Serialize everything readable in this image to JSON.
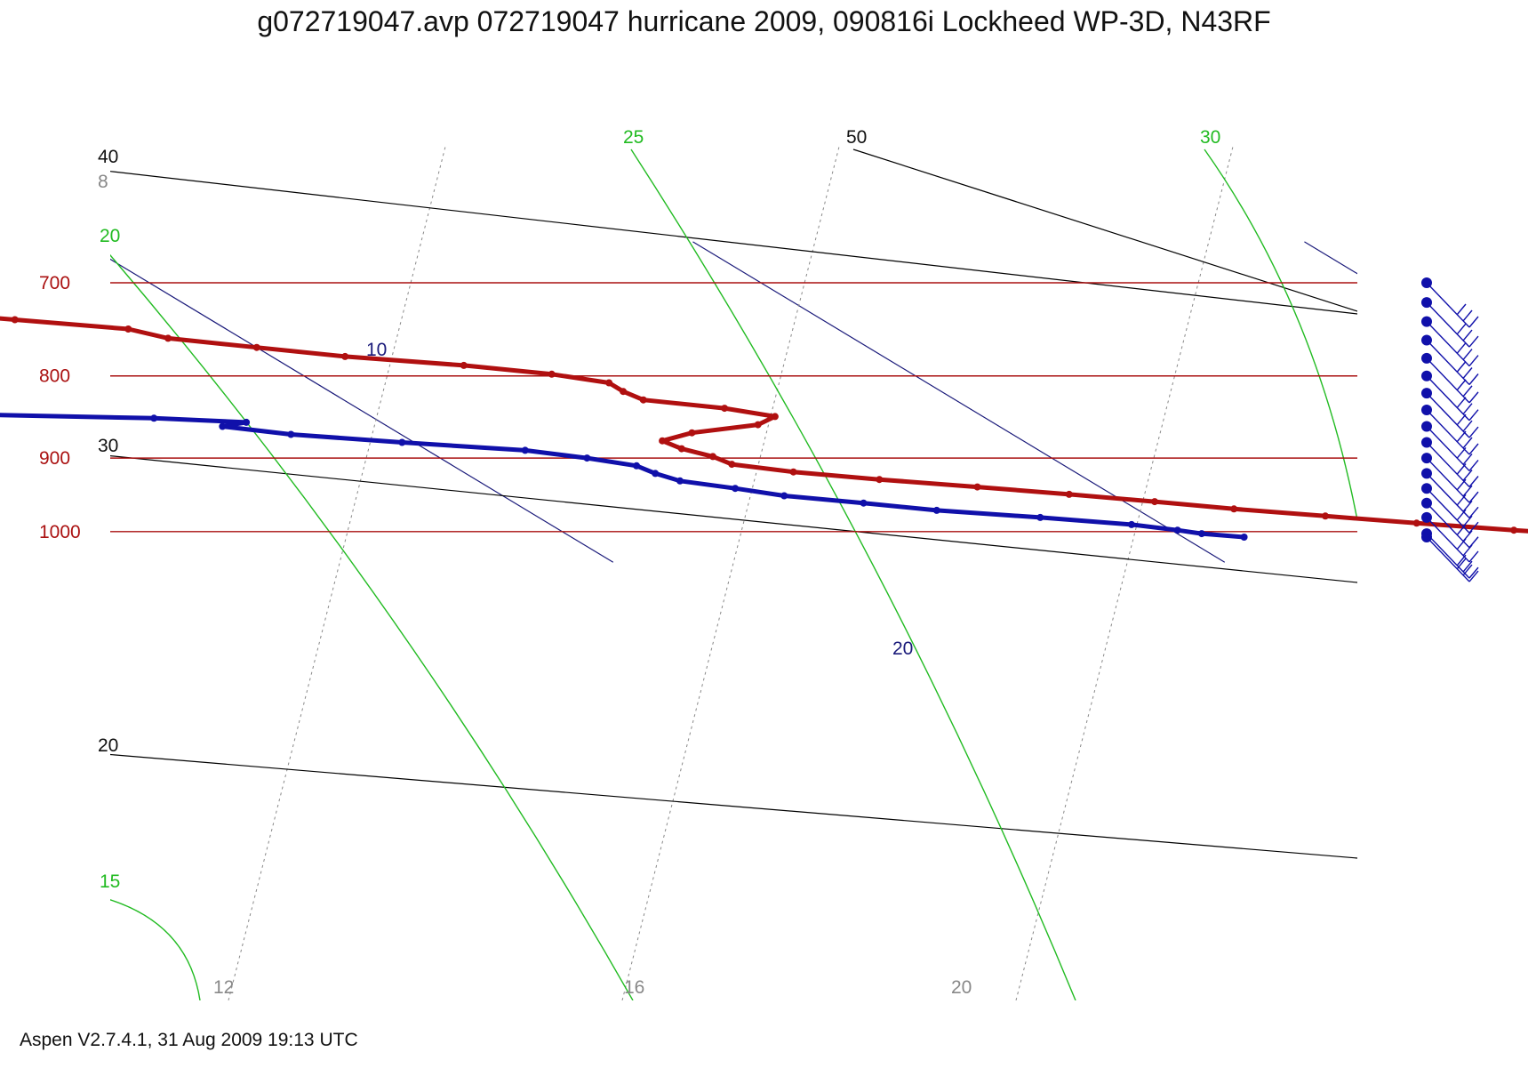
{
  "title": "g072719047.avp 072719047 hurricane 2009, 090816i Lockheed WP-3D, N43RF",
  "footer": "Aspen V2.7.4.1, 31 Aug 2009  19:13 UTC",
  "colors": {
    "isobar": "#aa1010",
    "dry_adiabat": "#000000",
    "moist_adiabat": "#22bb22",
    "isotherm": "#1a1a7a",
    "mixing_ratio": "#888888",
    "temperature": "#b01010",
    "dewpoint": "#1010aa",
    "wind": "#1010aa"
  },
  "chart_data": {
    "type": "line",
    "title": "g072719047.avp 072719047 hurricane 2009, 090816i Lockheed WP-3D, N43RF",
    "xlabel": "",
    "ylabel": "",
    "y_scale": "log",
    "ylim": [
      1045,
      660
    ],
    "pressure_levels": [
      700,
      800,
      900,
      1000
    ],
    "grid_labels": {
      "dry_adiabats": [
        "40",
        "30",
        "20",
        "50"
      ],
      "moist_adiabats": [
        "20",
        "25",
        "30",
        "15"
      ],
      "isotherms": [
        "10",
        "20"
      ],
      "mixing_ratio": [
        "8",
        "12",
        "16",
        "20"
      ]
    },
    "series": [
      {
        "name": "",
        "kind": "temperature",
        "pressure": [
          1008,
          998,
          988,
          978,
          968,
          958,
          948,
          938,
          928,
          918,
          908,
          898,
          888,
          878,
          868,
          858,
          848,
          838,
          828,
          818,
          808,
          798,
          788,
          778,
          768,
          758,
          748,
          738,
          728,
          718,
          713,
          703
        ],
        "value": [
          27.2,
          25.6,
          24.2,
          22.9,
          21.6,
          20.5,
          19.3,
          18.0,
          16.6,
          15.4,
          14.6,
          14.5,
          14.2,
          14.1,
          14.8,
          16.1,
          16.6,
          16.0,
          14.9,
          14.8,
          14.8,
          14.1,
          12.9,
          11.2,
          10.0,
          8.8,
          8.4,
          6.8,
          5.1,
          3.5,
          3.8,
          1.8
        ]
      },
      {
        "name": "",
        "kind": "dewpoint",
        "pressure": [
          1008,
          1003,
          998,
          990,
          980,
          970,
          960,
          950,
          940,
          930,
          920,
          910,
          900,
          890,
          880,
          870,
          860,
          855,
          850,
          846,
          840,
          830,
          820,
          810,
          805,
          800,
          795,
          790,
          780,
          770,
          760,
          750,
          740,
          738
        ],
        "value": [
          21.0,
          20.4,
          20.1,
          19.5,
          18.2,
          16.7,
          15.7,
          14.6,
          14.0,
          13.3,
          13.1,
          13.0,
          12.4,
          11.6,
          9.8,
          8.2,
          7.3,
          7.8,
          6.4,
          3.9,
          3.8,
          3.6,
          2.9,
          2.1,
          0.9,
          1.5,
          1.2,
          -0.3,
          -1.6,
          -3.1,
          -2.4,
          -1.5,
          -1.6,
          -2.2
        ]
      }
    ],
    "wind_pressures": [
      1008,
      1003,
      980,
      960,
      940,
      920,
      900,
      880,
      860,
      840,
      820,
      800,
      780,
      760,
      740,
      720,
      700
    ],
    "wind_barbs": [
      "",
      "",
      "",
      "",
      "",
      "",
      "",
      "",
      "",
      "",
      "",
      "",
      "",
      "",
      "",
      "",
      ""
    ]
  }
}
